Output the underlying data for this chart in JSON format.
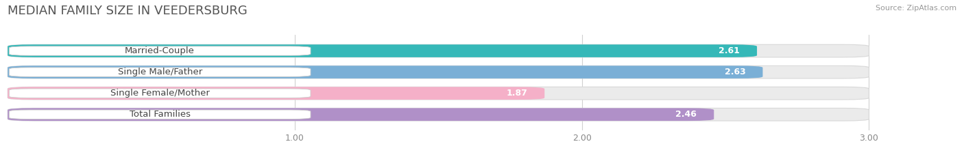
{
  "title": "MEDIAN FAMILY SIZE IN VEEDERSBURG",
  "source": "Source: ZipAtlas.com",
  "categories": [
    "Married-Couple",
    "Single Male/Father",
    "Single Female/Mother",
    "Total Families"
  ],
  "values": [
    2.61,
    2.63,
    1.87,
    2.46
  ],
  "bar_colors": [
    "#35b8b8",
    "#7aafd6",
    "#f5b0c8",
    "#b090c8"
  ],
  "background_color": "#ffffff",
  "bar_bg_color": "#ebebeb",
  "xlim_min": 0,
  "xlim_max": 3.18,
  "data_min": 0,
  "data_max": 3.0,
  "xticks": [
    1.0,
    2.0,
    3.0
  ],
  "label_fontsize": 9.5,
  "value_fontsize": 9,
  "title_fontsize": 13
}
